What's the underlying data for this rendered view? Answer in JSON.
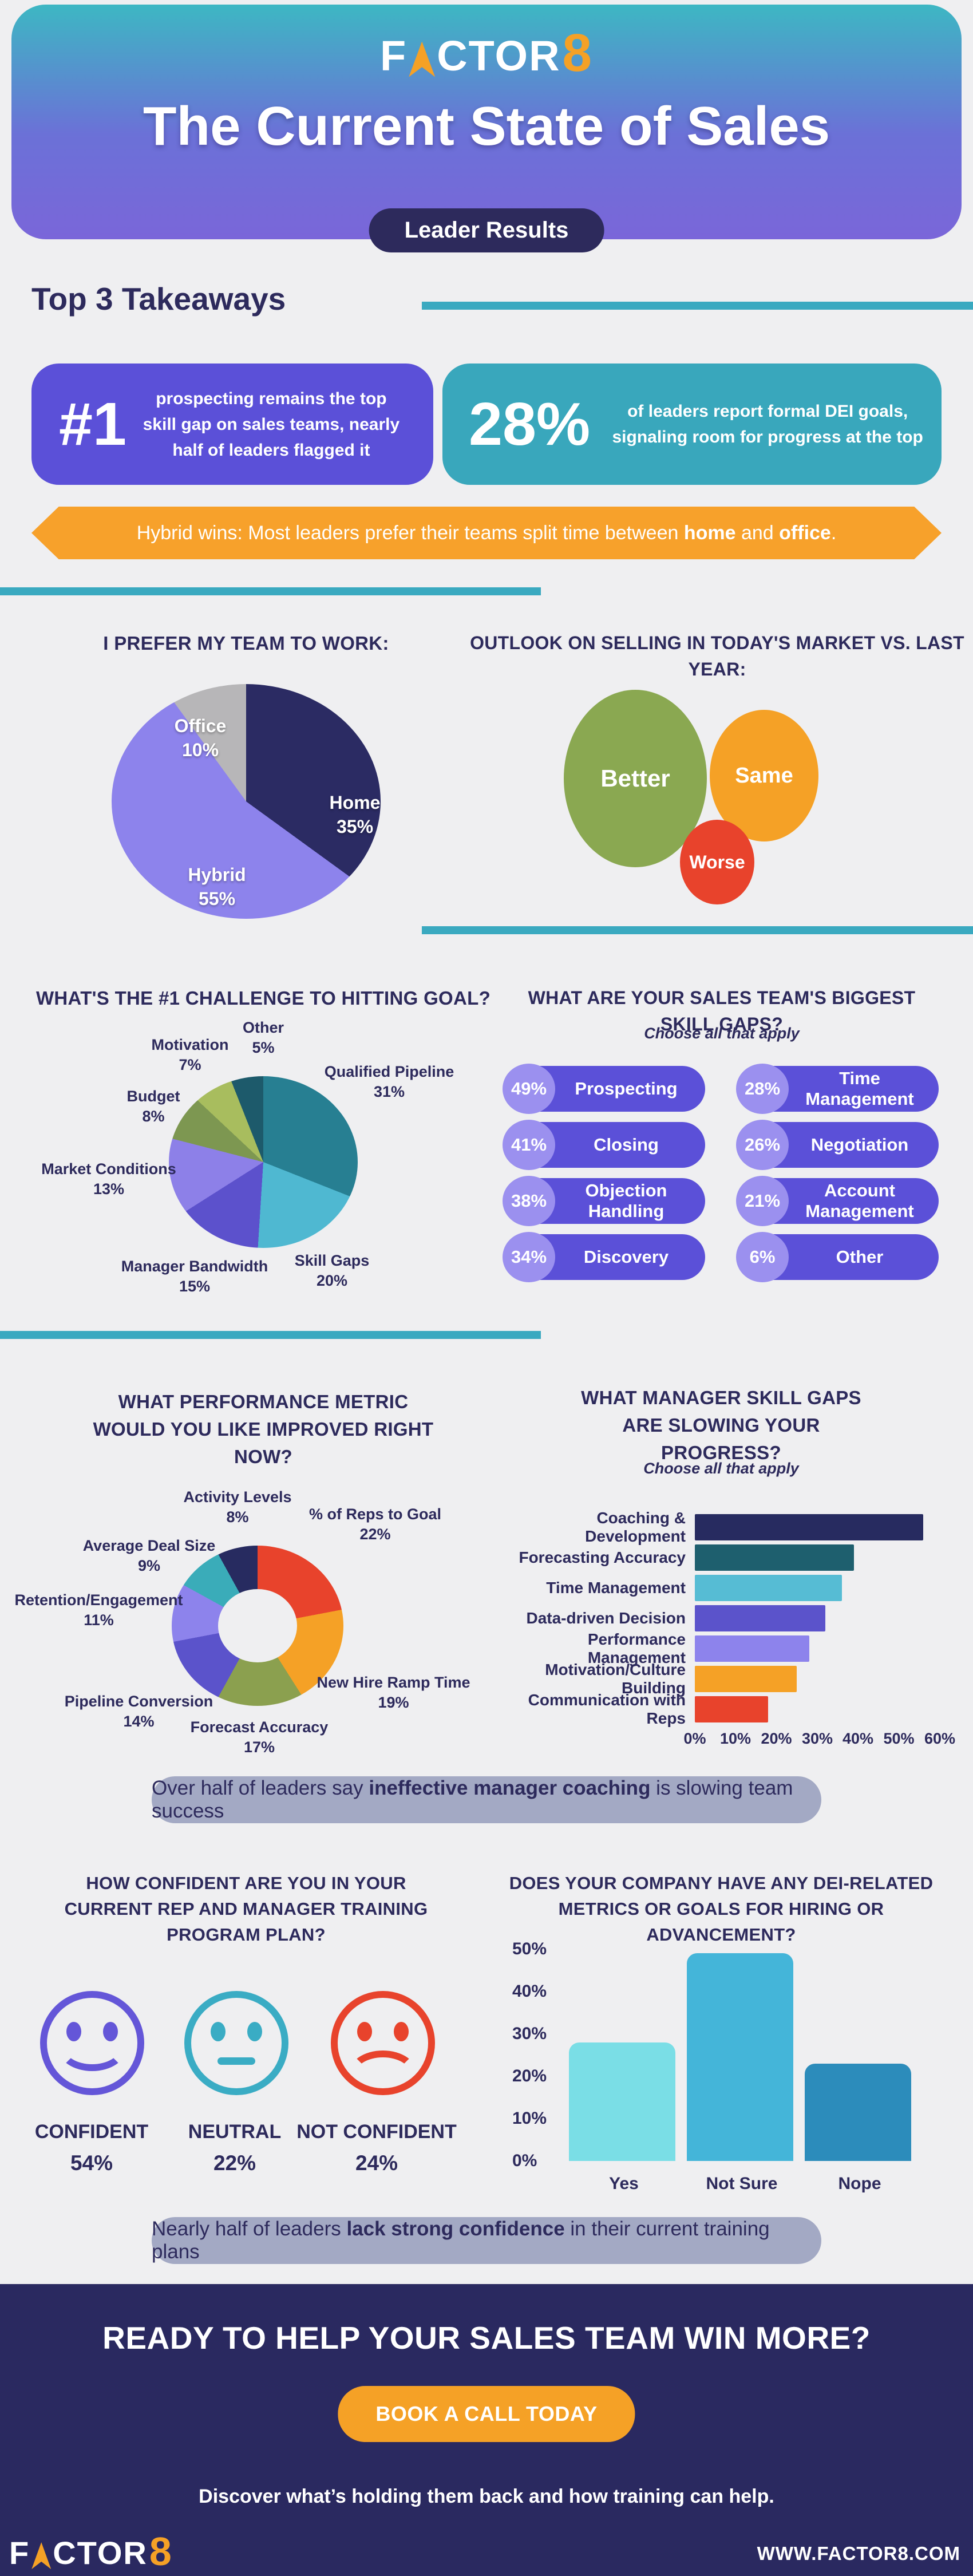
{
  "brand": {
    "f": "F",
    "ctor": "CTOR",
    "eight": "8"
  },
  "header": {
    "title": "The Current State of Sales",
    "badge": "Leader Results"
  },
  "takeaways": {
    "heading": "Top 3 Takeaways",
    "item1": {
      "rank": "#1",
      "text": "prospecting remains the top skill gap on sales teams, nearly half of leaders flagged it"
    },
    "item2": {
      "stat": "28%",
      "text": "of leaders report formal DEI goals, signaling room for progress at the top"
    },
    "ribbon": {
      "pre": "Hybrid wins: Most leaders prefer their teams split time between ",
      "bold1": "home",
      "mid": " and ",
      "bold2": "office",
      "post": "."
    }
  },
  "banners": {
    "coaching": {
      "pre": "Over half of leaders say ",
      "bold": "ineffective manager coaching",
      "post": " is slowing team success"
    },
    "training": {
      "pre": "Nearly half of leaders ",
      "bold": "lack strong confidence",
      "post": " in their current training plans"
    }
  },
  "footer": {
    "headline": "READY TO HELP YOUR SALES TEAM WIN MORE?",
    "button": "BOOK A CALL TODAY",
    "note": "Discover what’s holding them back and how training can help.",
    "website": "WWW.FACTOR8.COM"
  },
  "chart_data": [
    {
      "id": "work_preference",
      "type": "pie",
      "title": "I PREFER MY TEAM TO WORK:",
      "start": "top",
      "direction": "clockwise",
      "legend_position": "inside",
      "slices": [
        {
          "label": "Home",
          "value": 35,
          "pct": "35%",
          "color": "#2b2b63"
        },
        {
          "label": "Hybrid",
          "value": 55,
          "pct": "55%",
          "color": "#8d83ec"
        },
        {
          "label": "Office",
          "value": 10,
          "pct": "10%",
          "color": "#b7b6b8"
        }
      ]
    },
    {
      "id": "market_outlook",
      "type": "bubble",
      "title": "OUTLOOK ON SELLING IN TODAY'S MARKET VS. LAST YEAR:",
      "bubbles": [
        {
          "label": "Better",
          "size": "large",
          "color": "#8aa851"
        },
        {
          "label": "Same",
          "size": "medium",
          "color": "#f5a126"
        },
        {
          "label": "Worse",
          "size": "small",
          "color": "#e8432c"
        }
      ]
    },
    {
      "id": "goal_challenge",
      "type": "pie",
      "title": "WHAT'S THE #1 CHALLENGE TO HITTING GOAL?",
      "start": "top",
      "direction": "clockwise",
      "legend_position": "outside",
      "slices": [
        {
          "label": "Qualified Pipeline",
          "value": 31,
          "pct": "31%",
          "color": "#277f92"
        },
        {
          "label": "Skill Gaps",
          "value": 20,
          "pct": "20%",
          "color": "#4fb8d1"
        },
        {
          "label": "Manager Bandwidth",
          "value": 15,
          "pct": "15%",
          "color": "#5c51cc"
        },
        {
          "label": "Market Conditions",
          "value": 13,
          "pct": "13%",
          "color": "#8d80e8"
        },
        {
          "label": "Budget",
          "value": 8,
          "pct": "8%",
          "color": "#7d9751"
        },
        {
          "label": "Motivation",
          "value": 7,
          "pct": "7%",
          "color": "#a8bd5e"
        },
        {
          "label": "Other",
          "value": 5,
          "pct": "5%",
          "color": "#1d5a6b"
        }
      ]
    },
    {
      "id": "team_skill_gaps",
      "type": "table",
      "title": "WHAT ARE YOUR SALES TEAM'S BIGGEST SKILL GAPS?",
      "subtitle": "Choose all that apply",
      "items": [
        {
          "pct": "49%",
          "label": "Prospecting"
        },
        {
          "pct": "41%",
          "label": "Closing"
        },
        {
          "pct": "38%",
          "label": "Objection Handling"
        },
        {
          "pct": "34%",
          "label": "Discovery"
        },
        {
          "pct": "28%",
          "label": "Time Management"
        },
        {
          "pct": "26%",
          "label": "Negotiation"
        },
        {
          "pct": "21%",
          "label": "Account Management"
        },
        {
          "pct": "6%",
          "label": "Other"
        }
      ]
    },
    {
      "id": "performance_metric",
      "type": "pie",
      "style": "donut",
      "title": "WHAT PERFORMANCE METRIC WOULD YOU LIKE IMPROVED RIGHT NOW?",
      "start": "top",
      "direction": "clockwise",
      "legend_position": "outside",
      "slices": [
        {
          "label": "% of Reps to Goal",
          "value": 22,
          "pct": "22%",
          "color": "#e8432c"
        },
        {
          "label": "New Hire Ramp Time",
          "value": 19,
          "pct": "19%",
          "color": "#f5a126"
        },
        {
          "label": "Forecast Accuracy",
          "value": 17,
          "pct": "17%",
          "color": "#8ba04f"
        },
        {
          "label": "Pipeline Conversion",
          "value": 14,
          "pct": "14%",
          "color": "#5b53cb"
        },
        {
          "label": "Retention/Engagement",
          "value": 11,
          "pct": "11%",
          "color": "#8d83ec"
        },
        {
          "label": "Average Deal Size",
          "value": 9,
          "pct": "9%",
          "color": "#3aacb9"
        },
        {
          "label": "Activity Levels",
          "value": 8,
          "pct": "8%",
          "color": "#272b60"
        }
      ]
    },
    {
      "id": "manager_skill_gaps",
      "type": "bar",
      "orientation": "horizontal",
      "title": "WHAT MANAGER SKILL GAPS ARE SLOWING YOUR PROGRESS?",
      "subtitle": "Choose all that apply",
      "categories": [
        "Coaching & Development",
        "Forecasting Accuracy",
        "Time Management",
        "Data-driven Decision",
        "Performance Management",
        "Motivation/Culture Building",
        "Communication with Reps"
      ],
      "values": [
        56,
        39,
        36,
        32,
        28,
        25,
        18
      ],
      "colors": [
        "#272b60",
        "#1e5f6e",
        "#56bcd4",
        "#5b53cb",
        "#8d83ec",
        "#f5a126",
        "#e8432c"
      ],
      "xticks": [
        "0%",
        "10%",
        "20%",
        "30%",
        "40%",
        "50%",
        "60%"
      ],
      "xmax": 60,
      "grid": false
    },
    {
      "id": "training_confidence",
      "type": "pie",
      "style": "emoji-scale",
      "title": "HOW CONFIDENT ARE YOU IN YOUR CURRENT REP AND MANAGER TRAINING PROGRAM PLAN?",
      "items": [
        {
          "label": "CONFIDENT",
          "pct": "54%",
          "value": 54,
          "mood": "happy",
          "color": "#6456d8"
        },
        {
          "label": "NEUTRAL",
          "pct": "22%",
          "value": 22,
          "mood": "neutral",
          "color": "#3aacc4"
        },
        {
          "label": "NOT CONFIDENT",
          "pct": "24%",
          "value": 24,
          "mood": "sad",
          "color": "#e8432c"
        }
      ]
    },
    {
      "id": "dei_metrics",
      "type": "bar",
      "orientation": "vertical",
      "title": "DOES YOUR COMPANY HAVE ANY DEI-RELATED METRICS OR GOALS FOR HIRING OR ADVANCEMENT?",
      "categories": [
        "Yes",
        "Not Sure",
        "Nope"
      ],
      "values": [
        28,
        49,
        23
      ],
      "colors": [
        "#7adee6",
        "#44b5d9",
        "#2c8cbb"
      ],
      "yticks": [
        "50%",
        "40%",
        "30%",
        "20%",
        "10%",
        "0%"
      ],
      "ymax": 50,
      "grid": false
    }
  ]
}
